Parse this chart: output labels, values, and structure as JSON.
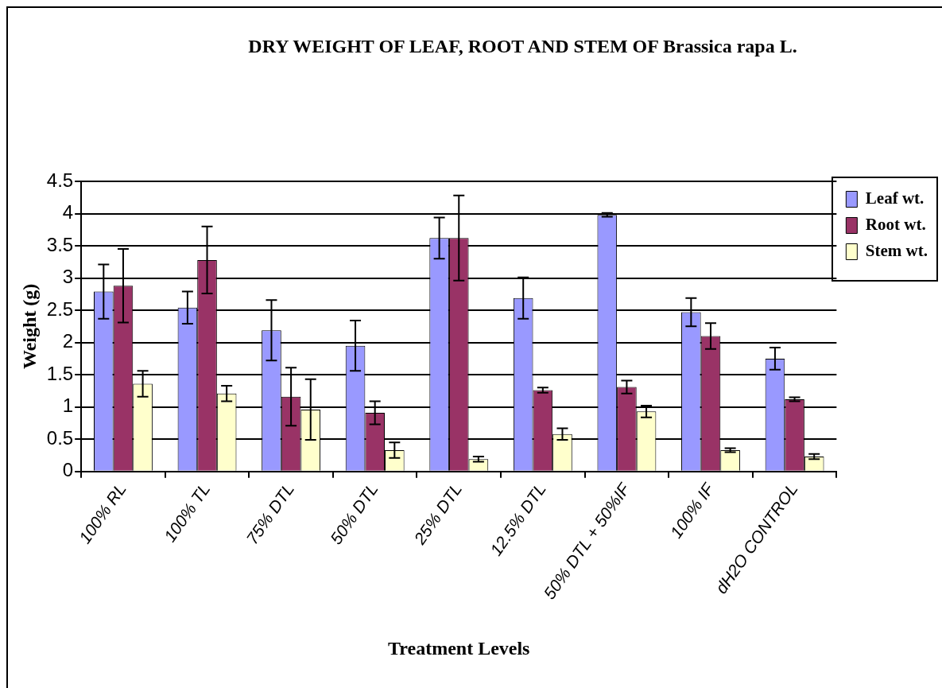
{
  "chart_data": {
    "type": "bar",
    "title": "DRY WEIGHT  OF LEAF,  ROOT AND STEM OF Brassica rapa L.",
    "xlabel": "Treatment Levels",
    "ylabel": "Weight (g)",
    "categories": [
      "100% RL",
      "100% TL",
      "75% DTL",
      "50% DTL",
      "25% DTL",
      "12.5% DTL",
      "50% DTL + 50%IF",
      "100% IF",
      "dH2O CONTROL"
    ],
    "series": [
      {
        "name": "Leaf wt.",
        "color": "#9999ff",
        "values": [
          2.79,
          2.54,
          2.19,
          1.95,
          3.62,
          2.69,
          3.98,
          2.47,
          1.75
        ],
        "errors": [
          0.42,
          0.25,
          0.47,
          0.39,
          0.32,
          0.32,
          0.03,
          0.22,
          0.17
        ]
      },
      {
        "name": "Root wt.",
        "color": "#993366",
        "values": [
          2.88,
          3.28,
          1.16,
          0.91,
          3.62,
          1.26,
          1.31,
          2.1,
          1.12
        ],
        "errors": [
          0.57,
          0.52,
          0.45,
          0.18,
          0.66,
          0.04,
          0.1,
          0.2,
          0.03
        ]
      },
      {
        "name": "Stem wt.",
        "color": "#ffffcc",
        "values": [
          1.36,
          1.21,
          0.96,
          0.33,
          0.19,
          0.58,
          0.93,
          0.33,
          0.23
        ],
        "errors": [
          0.2,
          0.12,
          0.47,
          0.12,
          0.04,
          0.09,
          0.09,
          0.03,
          0.04
        ]
      }
    ],
    "ylim": [
      0,
      4.5
    ],
    "yticks": [
      0,
      0.5,
      1,
      1.5,
      2,
      2.5,
      3,
      3.5,
      4,
      4.5
    ],
    "grid": "y",
    "legend": "top right"
  }
}
